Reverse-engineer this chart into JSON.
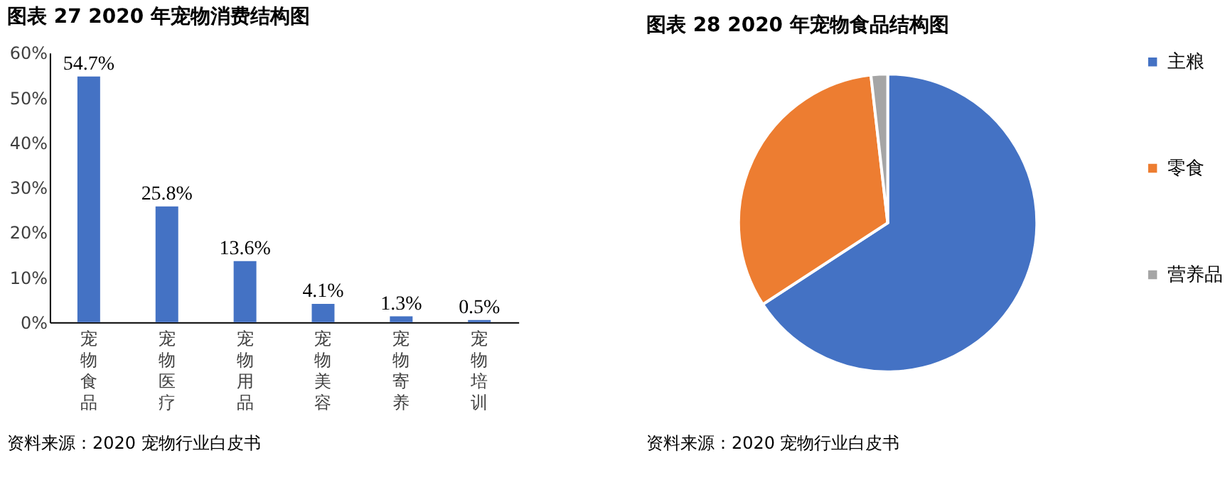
{
  "chart_data": [
    {
      "type": "bar",
      "title": "图表 27 2020 年宠物消费结构图",
      "categories": [
        "宠物食品",
        "宠物医疗",
        "宠物用品",
        "宠物美容",
        "宠物寄养",
        "宠物培训"
      ],
      "values": [
        54.7,
        25.8,
        13.6,
        4.1,
        1.3,
        0.5
      ],
      "value_labels": [
        "54.7%",
        "25.8%",
        "13.6%",
        "4.1%",
        "1.3%",
        "0.5%"
      ],
      "color": "#4472c4",
      "ylim": [
        0,
        60
      ],
      "yticks": [
        {
          "value": 0,
          "label": "0%"
        },
        {
          "value": 10,
          "label": "10%"
        },
        {
          "value": 20,
          "label": "20%"
        },
        {
          "value": 30,
          "label": "30%"
        },
        {
          "value": 40,
          "label": "40%"
        },
        {
          "value": 50,
          "label": "50%"
        },
        {
          "value": 60,
          "label": "60%"
        }
      ],
      "grid": false,
      "annotations": [
        "资料来源：2020 宠物行业白皮书"
      ]
    },
    {
      "type": "pie",
      "title": "图表 28 2020 年宠物食品结构图",
      "categories": [
        "主粮",
        "零食",
        "营养品"
      ],
      "values": [
        65.8,
        32.4,
        1.8
      ],
      "colors": [
        "#4472c4",
        "#ed7d31",
        "#a5a5a5"
      ],
      "legend": "right",
      "annotations": [
        "资料来源：2020 宠物行业白皮书"
      ]
    }
  ]
}
